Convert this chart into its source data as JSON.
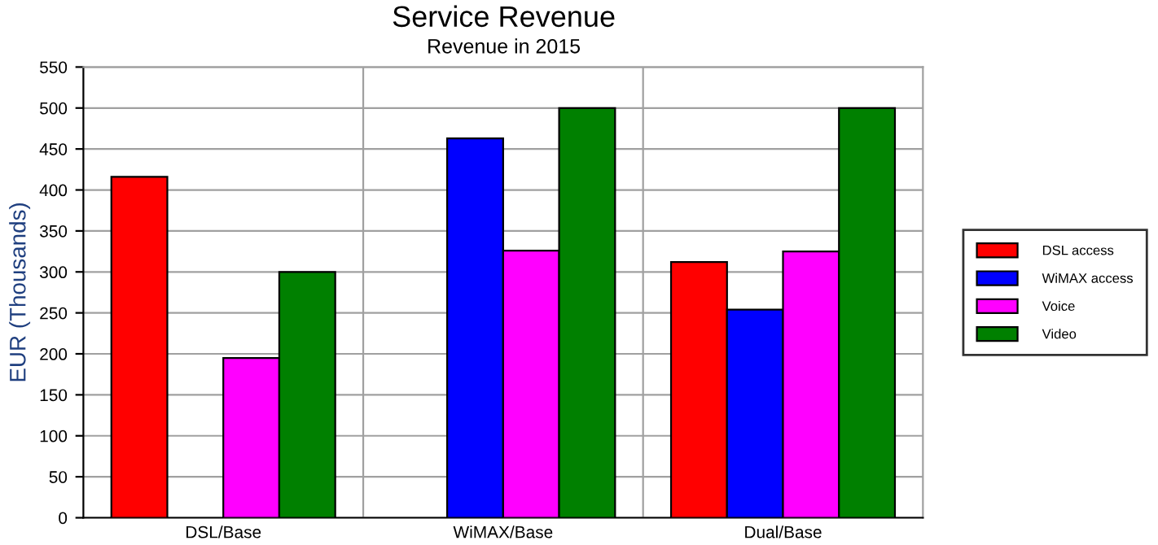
{
  "chart_data": {
    "type": "bar",
    "title": "Service Revenue",
    "subtitle": "Revenue in 2015",
    "ylabel": "EUR (Thousands)",
    "categories": [
      "DSL/Base",
      "WiMAX/Base",
      "Dual/Base"
    ],
    "series": [
      {
        "name": "DSL access",
        "color": "#ff0000",
        "values": [
          416,
          null,
          312
        ]
      },
      {
        "name": "WiMAX access",
        "color": "#0000ff",
        "values": [
          null,
          463,
          254
        ]
      },
      {
        "name": "Voice",
        "color": "#ff00ff",
        "values": [
          195,
          326,
          325
        ]
      },
      {
        "name": "Video",
        "color": "#008000",
        "values": [
          300,
          500,
          500
        ]
      }
    ],
    "ylim": [
      0,
      550
    ],
    "yticks": [
      0,
      50,
      100,
      150,
      200,
      250,
      300,
      350,
      400,
      450,
      500,
      550
    ],
    "grid": true,
    "legend": "right"
  }
}
